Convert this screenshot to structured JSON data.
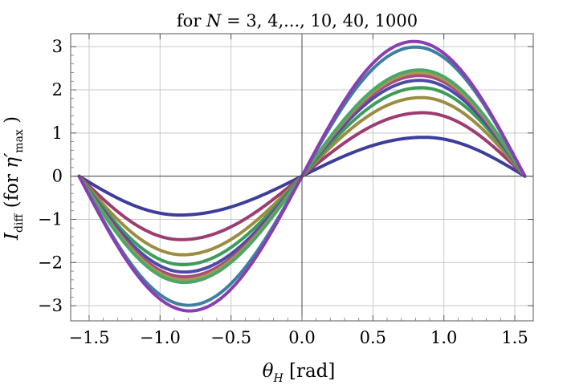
{
  "chart_data": {
    "type": "line",
    "title_prefix": "for ",
    "title_var": "N",
    "title_values": " = 3, 4,..., 10, 40, 1000",
    "xlabel_var": "θ",
    "xlabel_sub": "H",
    "xlabel_unit": " [rad]",
    "ylabel_main": "I",
    "ylabel_sub": "diff",
    "ylabel_paren_open": " (for ",
    "ylabel_eta": "η′",
    "ylabel_eta_sub": "max",
    "ylabel_paren_close": " )",
    "xlim": [
      -1.63,
      1.63
    ],
    "ylim": [
      -3.35,
      3.3
    ],
    "xticks": [
      -1.5,
      -1.0,
      -0.5,
      0.0,
      0.5,
      1.0,
      1.5
    ],
    "xtick_labels": [
      "−1.5",
      "−1.0",
      "−0.5",
      "0.0",
      "0.5",
      "1.0",
      "1.5"
    ],
    "yticks": [
      -3,
      -2,
      -1,
      0,
      1,
      2,
      3
    ],
    "ytick_labels": [
      "−3",
      "−2",
      "−1",
      "0",
      "1",
      "2",
      "3"
    ],
    "grid": true,
    "x_domain": [
      -1.5708,
      1.5708
    ],
    "series": [
      {
        "amplitude": 0.9,
        "peak_x": 0.86,
        "color": "#3d3d9c"
      },
      {
        "amplitude": 1.47,
        "peak_x": 0.85,
        "color": "#9c3d72"
      },
      {
        "amplitude": 1.82,
        "peak_x": 0.84,
        "color": "#9c8c43"
      },
      {
        "amplitude": 2.05,
        "peak_x": 0.84,
        "color": "#3d9c5a"
      },
      {
        "amplitude": 2.22,
        "peak_x": 0.83,
        "color": "#4c4ca6"
      },
      {
        "amplitude": 2.33,
        "peak_x": 0.83,
        "color": "#a64c7e"
      },
      {
        "amplitude": 2.4,
        "peak_x": 0.83,
        "color": "#a69a4f"
      },
      {
        "amplitude": 2.46,
        "peak_x": 0.83,
        "color": "#4ca668"
      },
      {
        "amplitude": 2.99,
        "peak_x": 0.8,
        "color": "#3f7fa0"
      },
      {
        "amplitude": 3.12,
        "peak_x": 0.79,
        "color": "#8a3fb0"
      }
    ]
  }
}
